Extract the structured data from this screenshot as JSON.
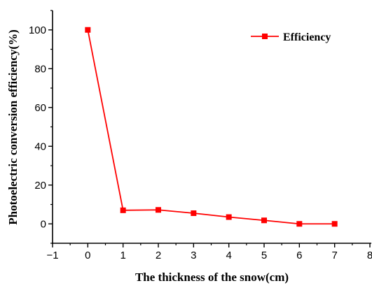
{
  "chart_data": {
    "type": "line",
    "title": "",
    "xlabel": "The thickness of the snow(cm)",
    "ylabel": "Photoelectric conversion efficiency(%)",
    "xlim": [
      -1,
      8
    ],
    "ylim": [
      -10,
      110
    ],
    "xticks": [
      -1,
      0,
      1,
      2,
      3,
      4,
      5,
      6,
      7,
      8
    ],
    "yticks": [
      0,
      20,
      40,
      60,
      80,
      100
    ],
    "x_tick_labels": [
      "−1",
      "0",
      "1",
      "2",
      "3",
      "4",
      "5",
      "6",
      "7",
      "8"
    ],
    "y_tick_labels": [
      "0",
      "20",
      "40",
      "60",
      "80",
      "100"
    ],
    "grid": false,
    "legend_position": "top-right",
    "series": [
      {
        "name": "Efficiency",
        "color": "#ff0000",
        "marker": "square",
        "x": [
          0,
          1,
          2,
          3,
          4,
          5,
          6,
          7
        ],
        "y": [
          100,
          7,
          7.2,
          5.5,
          3.5,
          1.8,
          0,
          0
        ]
      }
    ]
  }
}
